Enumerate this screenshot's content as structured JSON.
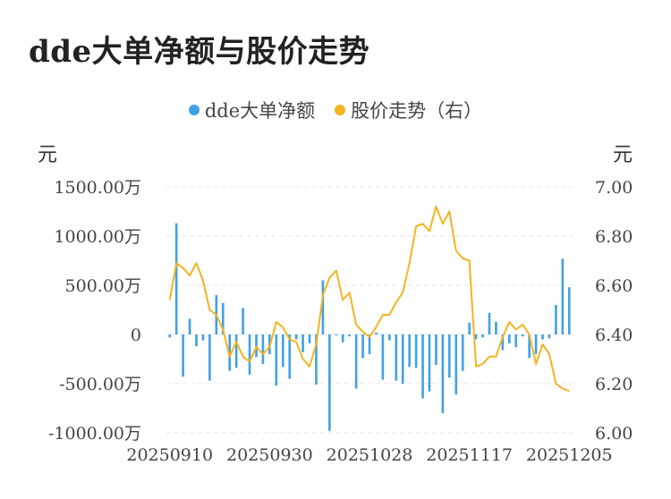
{
  "title": "dde大单净额与股价走势",
  "units": {
    "left": "元",
    "right": "元"
  },
  "colors": {
    "bar": "#3fa1e6",
    "line": "#f5b31f",
    "grid": "#e5e5e5",
    "axis": "#cccccc"
  },
  "chart_data": {
    "type": "bar+line",
    "legend": [
      {
        "name": "dde大单净额",
        "color": "#3fa1e6"
      },
      {
        "name": "股价走势（右）",
        "color": "#f5b31f"
      }
    ],
    "left_axis": {
      "ylim": [
        -1000,
        1500
      ],
      "ticks": [
        1500,
        1000,
        500,
        0,
        -500,
        -1000
      ],
      "tick_labels": [
        "1500.00万",
        "1000.00万",
        "500.00万",
        "0",
        "-500.00万",
        "-1000.00万"
      ]
    },
    "right_axis": {
      "ylim": [
        6.0,
        7.0
      ],
      "ticks": [
        7.0,
        6.8,
        6.6,
        6.4,
        6.2,
        6.0
      ],
      "tick_labels": [
        "7.00",
        "6.80",
        "6.60",
        "6.40",
        "6.20",
        "6.00"
      ]
    },
    "x_tick_labels": [
      {
        "index": 0,
        "label": "20250910"
      },
      {
        "index": 15,
        "label": "20250930"
      },
      {
        "index": 30,
        "label": "20251028"
      },
      {
        "index": 45,
        "label": "20251117"
      },
      {
        "index": 60,
        "label": "20251205"
      }
    ],
    "series": [
      {
        "name": "dde大单净额",
        "type": "bar",
        "values": [
          -30,
          1130,
          -430,
          160,
          -120,
          -60,
          -470,
          400,
          320,
          -370,
          -340,
          270,
          -410,
          -230,
          -300,
          -200,
          -520,
          -330,
          -450,
          -50,
          -180,
          -90,
          -510,
          550,
          -980,
          -10,
          -80,
          -20,
          -550,
          -240,
          -200,
          20,
          -460,
          -60,
          -470,
          -500,
          -330,
          -340,
          -650,
          -580,
          -310,
          -800,
          -440,
          -610,
          -370,
          120,
          -50,
          -30,
          220,
          130,
          -160,
          -90,
          -130,
          -20,
          -240,
          -200,
          -50,
          -40,
          300,
          770,
          480
        ]
      },
      {
        "name": "股价走势（右）",
        "type": "line",
        "values": [
          6.54,
          6.69,
          6.67,
          6.64,
          6.69,
          6.62,
          6.5,
          6.48,
          6.42,
          6.31,
          6.37,
          6.31,
          6.29,
          6.35,
          6.32,
          6.35,
          6.45,
          6.43,
          6.38,
          6.37,
          6.3,
          6.27,
          6.36,
          6.56,
          6.63,
          6.66,
          6.54,
          6.57,
          6.44,
          6.41,
          6.39,
          6.43,
          6.48,
          6.48,
          6.53,
          6.57,
          6.69,
          6.84,
          6.85,
          6.82,
          6.92,
          6.85,
          6.9,
          6.74,
          6.71,
          6.7,
          6.27,
          6.28,
          6.31,
          6.31,
          6.39,
          6.45,
          6.42,
          6.44,
          6.4,
          6.28,
          6.36,
          6.32,
          6.2,
          6.18,
          6.17
        ]
      }
    ]
  }
}
